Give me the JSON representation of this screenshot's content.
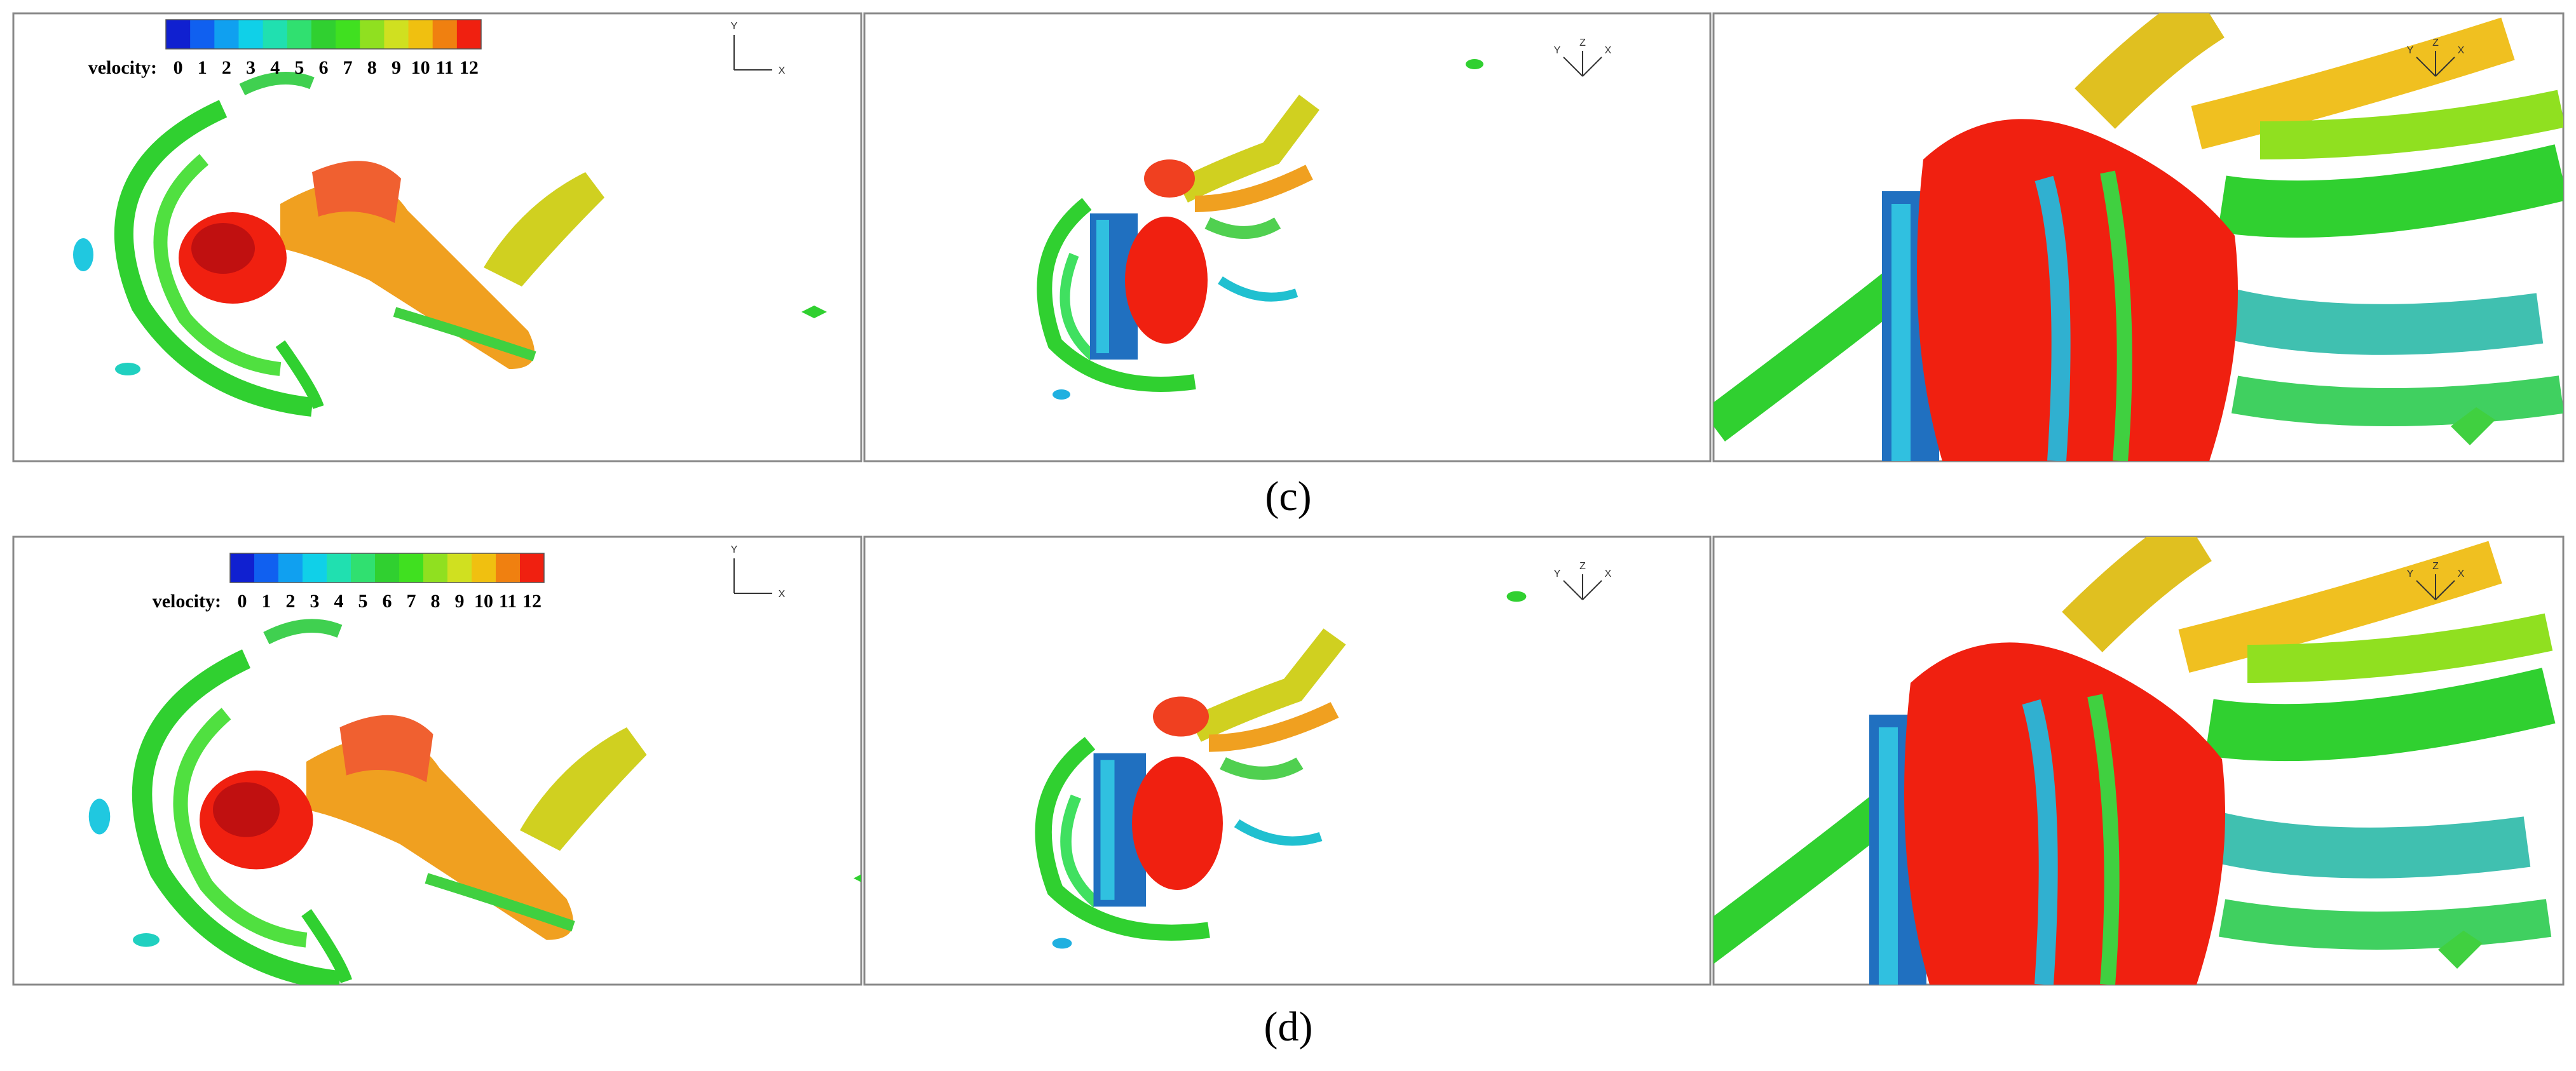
{
  "figure": {
    "rows": [
      {
        "label": "(c)",
        "colorbar": {
          "title": "velocity:",
          "ticks": [
            0,
            1,
            2,
            3,
            4,
            5,
            6,
            7,
            8,
            9,
            10,
            11,
            12
          ]
        }
      },
      {
        "label": "(d)",
        "colorbar": {
          "title": "velocity:",
          "ticks": [
            0,
            1,
            2,
            3,
            4,
            5,
            6,
            7,
            8,
            9,
            10,
            11,
            12
          ]
        }
      }
    ],
    "colormap": [
      "#1020d0",
      "#1060f0",
      "#10a0f0",
      "#10d0e8",
      "#20e0b0",
      "#30e070",
      "#30d030",
      "#40e020",
      "#90e020",
      "#d0e020",
      "#f0c010",
      "#f08010",
      "#f02010"
    ],
    "axes_triad": {
      "panel_1": [
        "Y",
        "X"
      ],
      "panel_2": [
        "Y",
        "Z",
        "X"
      ],
      "panel_3": [
        "Y",
        "Z",
        "X"
      ]
    }
  }
}
